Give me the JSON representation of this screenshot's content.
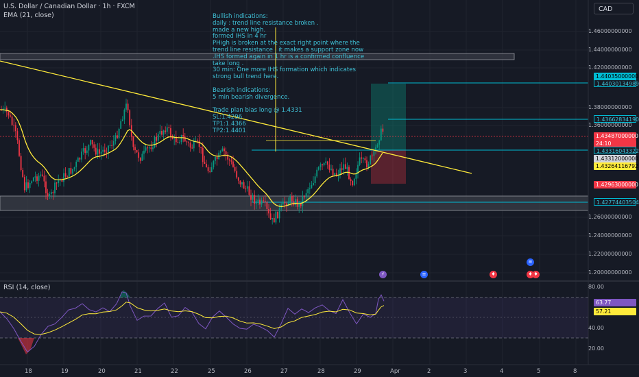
{
  "header": {
    "title": "U.S. Dollar / Canadian Dollar · 1h · FXCM",
    "ema_label": "EMA (21, close)",
    "currency": "CAD"
  },
  "annotation": {
    "lines": [
      "Bullish indications:",
      "daily : trend line resistance broken .",
      "made a new high.",
      "formed IHS in 4 hr",
      "PHigh is broken at the exact right point where the",
      "trend line resistance . it makes a support zone now",
      ".IHS formed again in 1 hr is a confirmed confluence",
      "take long .",
      "30 min: One more IHS formation which indicates",
      "strong bull trend here.",
      "",
      "Bearish indications:",
      "5 min bearish divergence.",
      "",
      "Trade plan bias long @ 1.4331",
      "SL:1.4296",
      "TP1:1.4366",
      "TP2:1.4401"
    ]
  },
  "price_axis": {
    "ticks": [
      "1.46000000000",
      "1.44000000000",
      "1.42000000000",
      "1.38000000000",
      "1.36000000000",
      "1.26000000000",
      "1.24000000000",
      "1.22000000000",
      "1.20000000000"
    ]
  },
  "price_tags": [
    {
      "text": "1.44035000000",
      "bg": "#00bcd4",
      "fg": "#000000"
    },
    {
      "text": "1.44030134989",
      "bg": "#161a25",
      "fg": "#3fc0d6",
      "border": "#00bcd4"
    },
    {
      "text": "1.43662834190",
      "bg": "#161a25",
      "fg": "#3fc0d6",
      "border": "#00bcd4"
    },
    {
      "text": "1.43487000000",
      "bg": "#f23645",
      "fg": "#ffffff"
    },
    {
      "text": "24:10",
      "bg": "#f23645",
      "fg": "#ffffff"
    },
    {
      "text": "1.43316043322",
      "bg": "#161a25",
      "fg": "#3fc0d6",
      "border": "#00bcd4"
    },
    {
      "text": "1.43312000000",
      "bg": "#d1d4dc",
      "fg": "#000000"
    },
    {
      "text": "1.43264116792",
      "bg": "#ffeb3b",
      "fg": "#000000"
    },
    {
      "text": "1.42963000000",
      "bg": "#f23645",
      "fg": "#ffffff"
    },
    {
      "text": "1.42774403504",
      "bg": "#161a25",
      "fg": "#3fc0d6",
      "border": "#00bcd4"
    }
  ],
  "rsi": {
    "label": "RSI (14, close)",
    "ticks": [
      "80.00",
      "40.00",
      "20.00"
    ],
    "value_tag": "63.77",
    "ma_tag": "57.21"
  },
  "time_axis": {
    "labels": [
      "18",
      "19",
      "20",
      "21",
      "22",
      "25",
      "26",
      "27",
      "28",
      "29",
      "Apr",
      "2",
      "3",
      "4",
      "5",
      "8"
    ]
  },
  "colors": {
    "bull": "#089981",
    "bear": "#f23645",
    "ema": "#ffeb3b",
    "trendline": "#ffeb3b",
    "cyan": "#00bcd4",
    "rsi": "#7e57c2"
  }
}
